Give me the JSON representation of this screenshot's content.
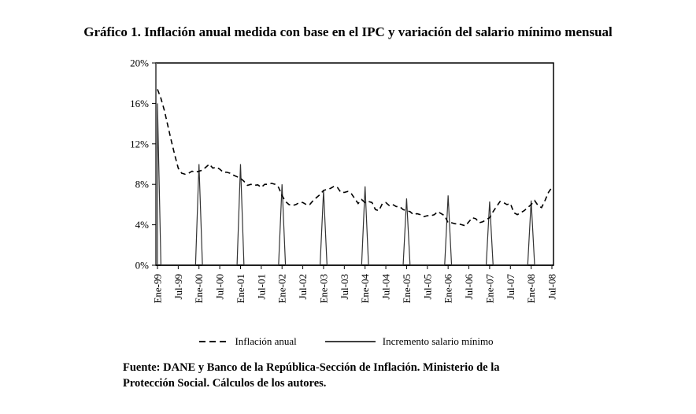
{
  "title": "Gráfico 1. Inflación anual medida con base en el IPC y variación del salario mínimo mensual",
  "legend": {
    "inflation_label": "Inflación anual",
    "wage_label": "Incremento salario mínimo"
  },
  "source": {
    "line1": "Fuente: DANE y Banco de la República-Sección de Inflación. Ministerio de la",
    "line2": "Protección Social. Cálculos de los autores."
  },
  "colors": {
    "line": "#000000",
    "axis": "#666666",
    "background": "#ffffff"
  },
  "chart_data": {
    "type": "line",
    "title": "Gráfico 1. Inflación anual medida con base en el IPC y variación del salario mínimo mensual",
    "x_frequency": "monthly",
    "x_start_label": "Ene-99",
    "x_end_label": "Jul-08",
    "n_points": 115,
    "months_per_tick": 6,
    "x_tick_labels": [
      "Ene-99",
      "Jul-99",
      "Ene-00",
      "Jul-00",
      "Ene-01",
      "Jul-01",
      "Ene-02",
      "Jul-02",
      "Ene-03",
      "Jul-03",
      "Ene-04",
      "Jul-04",
      "Ene-05",
      "Jul-05",
      "Ene-06",
      "Jul-06",
      "Ene-07",
      "Jul-07",
      "Ene-08",
      "Jul-08"
    ],
    "ylim": [
      0,
      20
    ],
    "ytick_values": [
      0,
      4,
      8,
      12,
      16,
      20
    ],
    "ytick_labels": [
      "0%",
      "4%",
      "8%",
      "12%",
      "16%",
      "20%"
    ],
    "grid": false,
    "legend_position": "bottom",
    "series": [
      {
        "name": "Inflación anual",
        "style": "dashed",
        "values": [
          17.4,
          16.5,
          15.3,
          13.8,
          12.3,
          10.9,
          9.6,
          9.1,
          9.0,
          9.1,
          9.3,
          9.2,
          9.3,
          9.4,
          9.7,
          10.0,
          9.6,
          9.7,
          9.5,
          9.2,
          9.2,
          9.1,
          8.9,
          8.75,
          8.6,
          8.3,
          7.9,
          8.0,
          7.9,
          7.95,
          7.7,
          8.0,
          8.0,
          8.1,
          8.0,
          7.7,
          6.9,
          6.3,
          6.0,
          5.9,
          6.0,
          6.2,
          6.2,
          6.0,
          6.0,
          6.4,
          6.7,
          7.0,
          7.4,
          7.5,
          7.6,
          7.8,
          7.7,
          7.2,
          7.2,
          7.3,
          7.1,
          6.6,
          6.1,
          6.5,
          6.2,
          6.3,
          6.2,
          5.5,
          5.4,
          6.1,
          6.2,
          5.9,
          6.0,
          5.8,
          5.8,
          5.5,
          5.4,
          5.3,
          5.0,
          5.1,
          5.0,
          4.8,
          4.9,
          4.9,
          5.0,
          5.3,
          5.1,
          4.9,
          4.2,
          4.2,
          4.1,
          4.1,
          4.0,
          3.9,
          4.3,
          4.7,
          4.6,
          4.2,
          4.3,
          4.5,
          4.7,
          5.3,
          5.8,
          6.3,
          6.2,
          6.0,
          6.1,
          5.2,
          5.0,
          5.2,
          5.4,
          5.7,
          6.0,
          6.4,
          5.9,
          5.7,
          6.4,
          7.2,
          7.7
        ]
      },
      {
        "name": "Incremento salario mínimo",
        "style": "solid",
        "other_months_value": 0,
        "january_spikes": {
          "1999": 16.0,
          "2000": 10.0,
          "2001": 10.0,
          "2002": 8.0,
          "2003": 7.4,
          "2004": 7.8,
          "2005": 6.6,
          "2006": 6.9,
          "2007": 6.3,
          "2008": 6.4
        }
      }
    ]
  }
}
